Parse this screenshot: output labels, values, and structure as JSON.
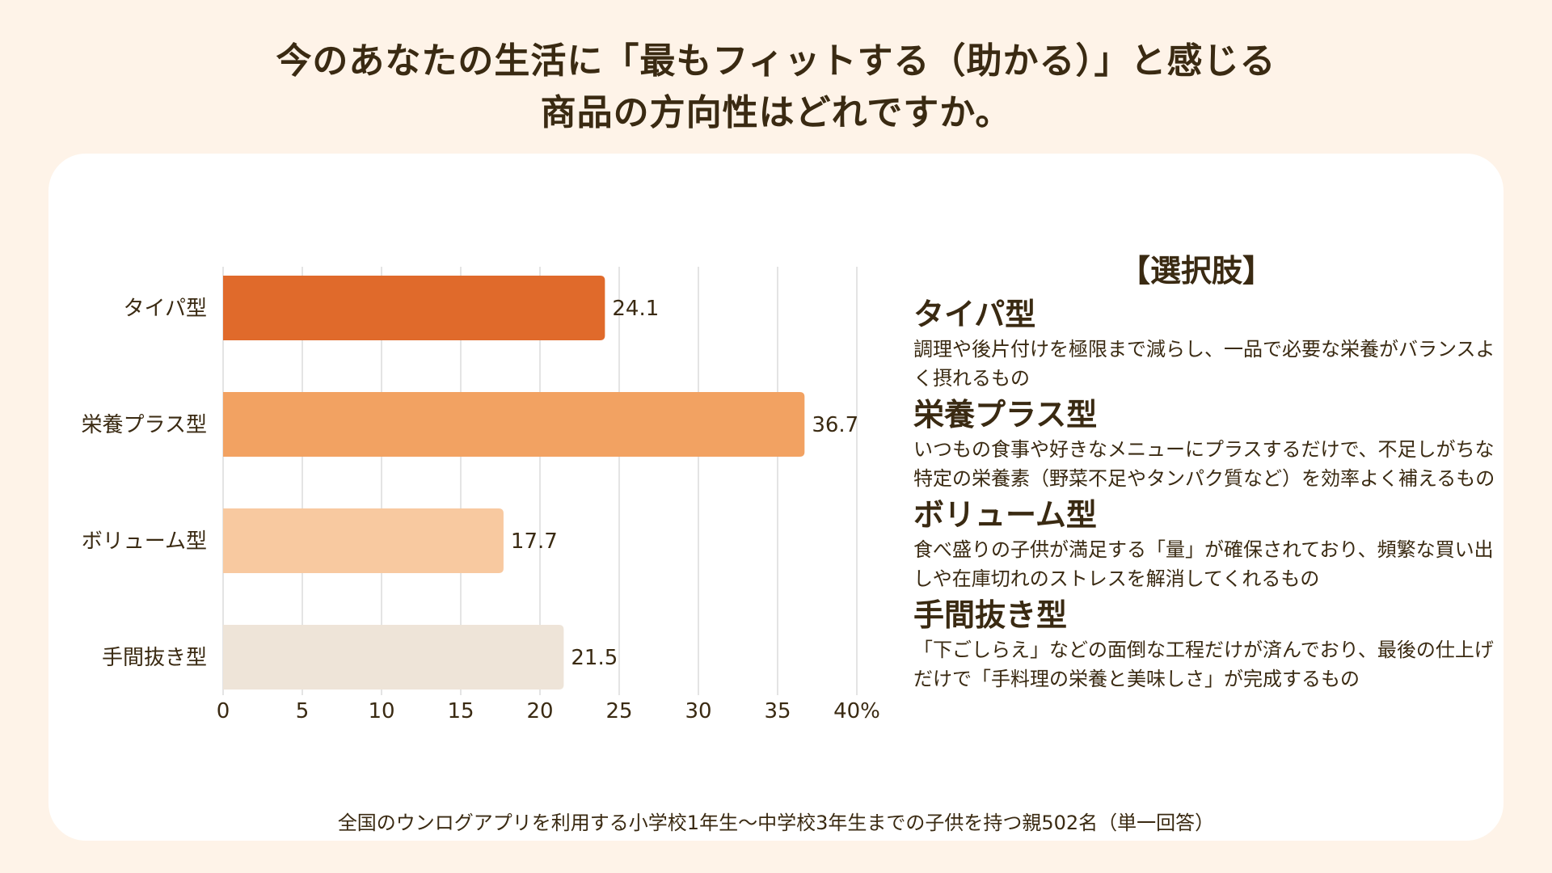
{
  "title": {
    "line1": "今のあなたの生活に「最もフィットする（助かる）」と感じる",
    "line2": "商品の方向性はどれですか。"
  },
  "chart_data": {
    "type": "bar",
    "orientation": "horizontal",
    "categories": [
      "タイパ型",
      "栄養プラス型",
      "ボリューム型",
      "手間抜き型"
    ],
    "values": [
      24.1,
      36.7,
      17.7,
      21.5
    ],
    "value_labels": [
      "24.1",
      "36.7",
      "17.7",
      "21.5"
    ],
    "colors": [
      "#E06A2B",
      "#F2A262",
      "#F8C9A0",
      "#EEE4D8"
    ],
    "xlim": [
      0,
      40
    ],
    "x_ticks": [
      0,
      5,
      10,
      15,
      20,
      25,
      30,
      35,
      40
    ],
    "x_tick_labels": [
      "0",
      "5",
      "10",
      "15",
      "20",
      "25",
      "30",
      "35",
      "40%"
    ],
    "title": "今のあなたの生活に「最もフィットする（助かる）」と感じる商品の方向性はどれですか。",
    "xlabel": "",
    "ylabel": "",
    "unit": "%",
    "grid": true,
    "legend": "none"
  },
  "options_panel": {
    "heading": "【選択肢】",
    "items": [
      {
        "title": "タイパ型",
        "desc": "調理や後片付けを極限まで減らし、一品で必要な栄養がバランスよく摂れるもの"
      },
      {
        "title": "栄養プラス型",
        "desc": "いつもの食事や好きなメニューにプラスするだけで、不足しがちな特定の栄養素（野菜不足やタンパク質など）を効率よく補えるもの"
      },
      {
        "title": "ボリューム型",
        "desc": "食べ盛りの子供が満足する「量」が確保されており、頻繁な買い出しや在庫切れのストレスを解消してくれるもの"
      },
      {
        "title": "手間抜き型",
        "desc": "「下ごしらえ」などの面倒な工程だけが済んでおり、最後の仕上げだけで「手料理の栄養と美味しさ」が完成するもの"
      }
    ]
  },
  "footnote": "全国のウンログアプリを利用する小学校1年生〜中学校3年生までの子供を持つ親502名（単一回答）"
}
